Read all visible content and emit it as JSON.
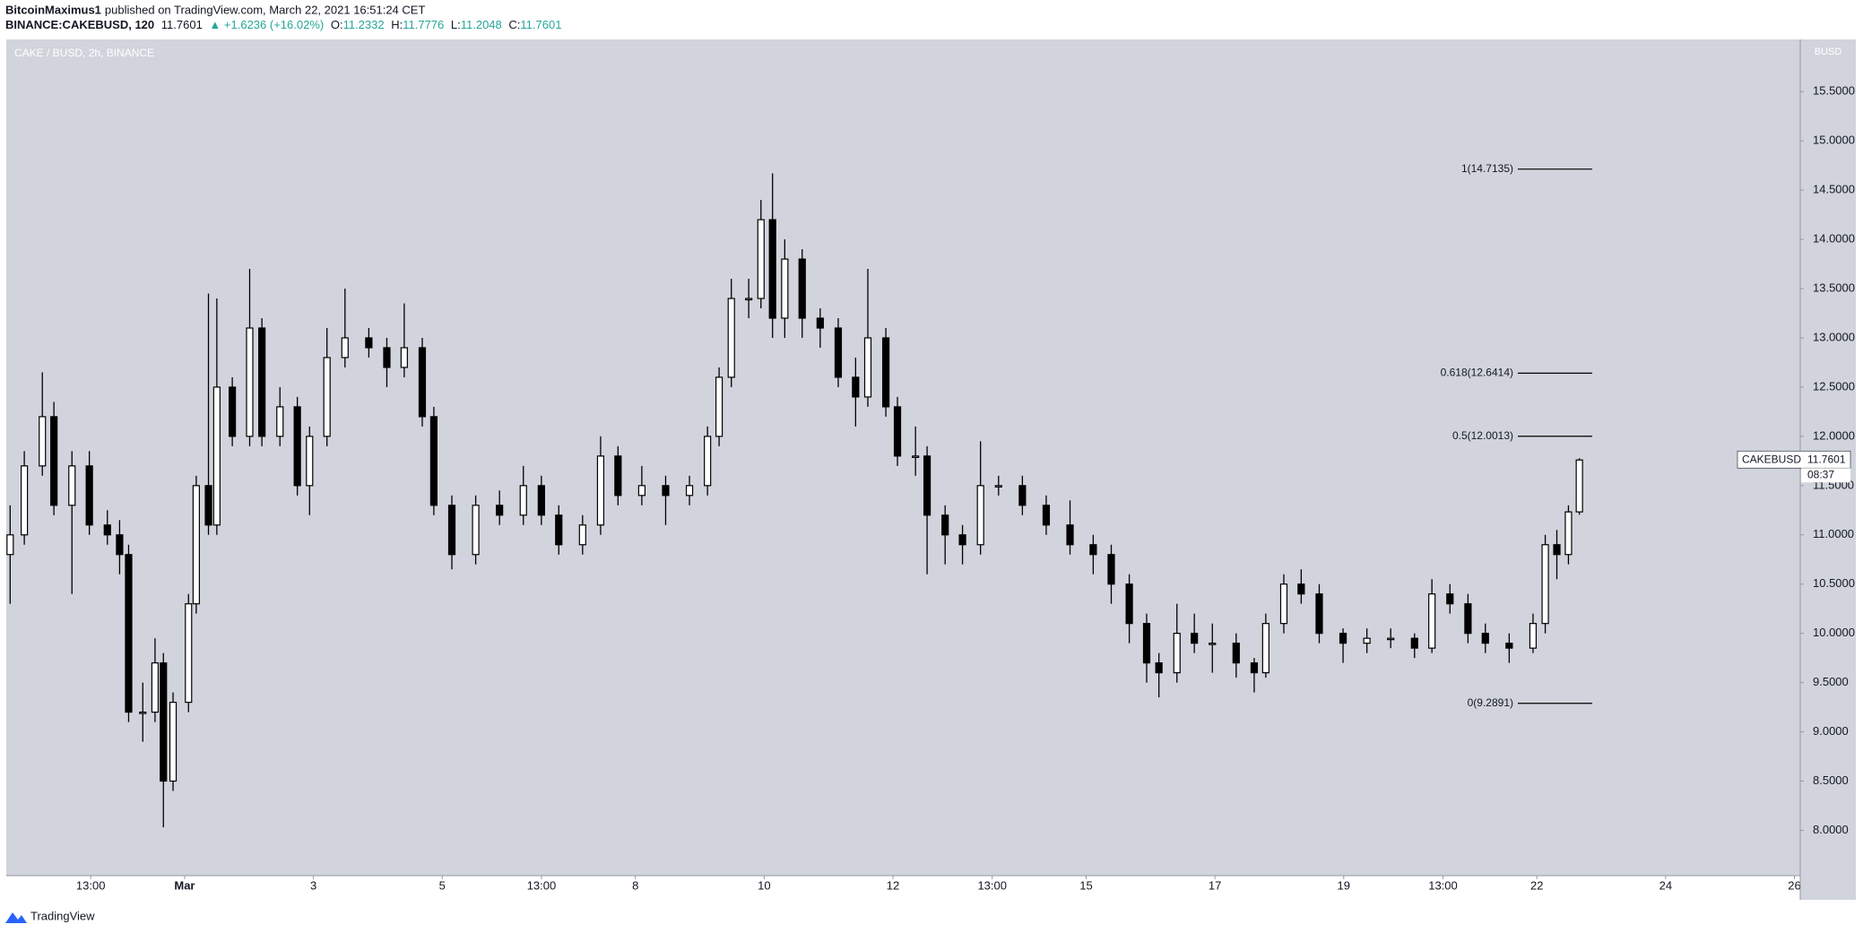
{
  "header": {
    "author": "BitcoinMaximus1",
    "published": "published on TradingView.com, March 22, 2021 16:51:24 CET",
    "symbol": "BINANCE:CAKEBUSD, 120",
    "change": "▲ +1.6236 (+16.02%)",
    "ohlc_labels": [
      "O:",
      "H:",
      "L:",
      "C:"
    ]
  },
  "footer": {
    "brand": "TradingView"
  },
  "chart_data": {
    "type": "candlestick",
    "title": "CAKE / BUSD, 2h, BINANCE",
    "y_unit": "BUSD",
    "price_tag": {
      "symbol": "CAKEBUSD",
      "countdown": "08:37"
    },
    "up_color": "#ffffff",
    "down_color": "#000000",
    "xlim": [
      -1.77,
      26.09
    ],
    "ylim": [
      7.54,
      16.03
    ],
    "xticks": [
      {
        "value": -0.4583,
        "label": "13:00"
      },
      {
        "value": 1,
        "label": "Mar"
      },
      3,
      5,
      {
        "value": 6.5417,
        "label": "13:00"
      },
      8,
      10,
      12,
      {
        "value": 13.5417,
        "label": "13:00"
      },
      15,
      17,
      19,
      {
        "value": 20.5417,
        "label": "13:00"
      },
      22,
      24,
      26
    ],
    "yticks": [
      {
        "value": 8,
        "label": "8.0000"
      },
      {
        "value": 8.5,
        "label": "8.5000"
      },
      {
        "value": 9,
        "label": "9.0000"
      },
      {
        "value": 9.5,
        "label": "9.5000"
      },
      {
        "value": 10,
        "label": "10.0000"
      },
      {
        "value": 10.5,
        "label": "10.5000"
      },
      {
        "value": 11,
        "label": "11.0000"
      },
      {
        "value": 11.5,
        "label": "11.5000"
      },
      {
        "value": 12,
        "label": "12.0000"
      },
      {
        "value": 12.5,
        "label": "12.5000"
      },
      {
        "value": 13,
        "label": "13.0000"
      },
      {
        "value": 13.5,
        "label": "13.5000"
      },
      {
        "value": 14,
        "label": "14.0000"
      },
      {
        "value": 14.5,
        "label": "14.5000"
      },
      {
        "value": 15,
        "label": "15.0000"
      },
      {
        "value": 15.5,
        "label": "15.5000"
      }
    ],
    "fib_levels": [
      {
        "label": "1(14.7135)",
        "value": 14.7135
      },
      {
        "label": "0.618(12.6414)",
        "value": 12.6414
      },
      {
        "label": "0.5(12.0013)",
        "value": 12.0013
      },
      {
        "label": "0(9.2891)",
        "value": 9.2891
      }
    ],
    "x": [
      -1.71,
      -1.49,
      -1.21,
      -1.03,
      -0.75,
      -0.48,
      -0.2,
      -0.01,
      0.13,
      0.35,
      0.54,
      0.67,
      0.82,
      1.06,
      1.18,
      1.37,
      1.5,
      1.74,
      2.01,
      2.2,
      2.48,
      2.75,
      2.94,
      3.21,
      3.49,
      3.86,
      4.14,
      4.41,
      4.69,
      4.87,
      5.15,
      5.52,
      5.89,
      6.26,
      6.54,
      6.81,
      7.18,
      7.46,
      7.73,
      8.1,
      8.47,
      8.84,
      9.12,
      9.3,
      9.49,
      9.76,
      9.95,
      10.13,
      10.32,
      10.59,
      10.87,
      11.15,
      11.42,
      11.61,
      11.89,
      12.07,
      12.35,
      12.53,
      12.81,
      13.08,
      13.36,
      13.64,
      14.01,
      14.38,
      14.75,
      15.11,
      15.39,
      15.67,
      15.94,
      16.13,
      16.41,
      16.68,
      16.96,
      17.33,
      17.61,
      17.79,
      18.07,
      18.34,
      18.62,
      18.99,
      19.36,
      19.73,
      20.1,
      20.37,
      20.65,
      20.93,
      21.2,
      21.57,
      21.94,
      22.13,
      22.31,
      22.49,
      22.66
    ],
    "open": [
      10.8,
      11.0,
      11.7,
      12.2,
      11.3,
      11.7,
      11.1,
      11.0,
      10.8,
      9.2,
      9.2,
      9.7,
      8.5,
      9.3,
      10.3,
      11.5,
      11.1,
      12.5,
      12.0,
      13.1,
      12.0,
      12.3,
      11.5,
      12.0,
      12.8,
      13.0,
      12.9,
      12.7,
      12.9,
      12.2,
      11.3,
      10.8,
      11.3,
      11.2,
      11.5,
      11.2,
      10.9,
      11.1,
      11.8,
      11.4,
      11.5,
      11.4,
      11.5,
      12.0,
      12.6,
      13.4,
      13.4,
      14.2,
      13.2,
      13.8,
      13.2,
      13.1,
      12.6,
      12.4,
      13.0,
      12.3,
      11.8,
      11.8,
      11.2,
      11.0,
      10.9,
      11.5,
      11.5,
      11.3,
      11.1,
      10.9,
      10.8,
      10.5,
      10.1,
      9.7,
      9.6,
      10.0,
      9.9,
      9.9,
      9.7,
      9.6,
      10.1,
      10.5,
      10.4,
      10.0,
      9.9,
      9.95,
      9.95,
      9.85,
      10.4,
      10.3,
      10.0,
      9.9,
      9.85,
      10.1,
      10.9,
      10.8,
      11.2332
    ],
    "high": [
      11.3,
      11.85,
      12.65,
      12.35,
      11.85,
      11.85,
      11.25,
      11.15,
      10.9,
      9.5,
      9.95,
      9.8,
      9.4,
      10.4,
      11.6,
      13.45,
      13.4,
      12.6,
      13.7,
      13.2,
      12.5,
      12.4,
      12.1,
      13.1,
      13.5,
      13.1,
      13.0,
      13.35,
      13.0,
      12.3,
      11.4,
      11.4,
      11.45,
      11.7,
      11.6,
      11.3,
      11.2,
      12.0,
      11.9,
      11.7,
      11.6,
      11.6,
      12.1,
      12.7,
      13.6,
      13.6,
      14.4,
      14.67,
      14.0,
      13.9,
      13.3,
      13.2,
      12.8,
      13.7,
      13.1,
      12.4,
      12.1,
      11.9,
      11.3,
      11.1,
      11.95,
      11.6,
      11.6,
      11.4,
      11.35,
      11.0,
      10.9,
      10.6,
      10.2,
      9.8,
      10.3,
      10.2,
      10.1,
      10.0,
      9.75,
      10.2,
      10.6,
      10.65,
      10.5,
      10.05,
      10.05,
      10.05,
      10.0,
      10.55,
      10.5,
      10.4,
      10.1,
      10.0,
      10.2,
      11.0,
      11.05,
      11.3,
      11.7776
    ],
    "low": [
      10.3,
      10.9,
      11.6,
      11.2,
      10.4,
      11.0,
      10.9,
      10.6,
      9.1,
      8.9,
      9.1,
      8.03,
      8.4,
      9.2,
      10.2,
      11.0,
      11.0,
      11.9,
      11.9,
      11.9,
      11.9,
      11.4,
      11.2,
      11.9,
      12.7,
      12.8,
      12.5,
      12.6,
      12.1,
      11.2,
      10.65,
      10.7,
      11.1,
      11.1,
      11.1,
      10.8,
      10.8,
      11.0,
      11.3,
      11.3,
      11.1,
      11.3,
      11.4,
      11.9,
      12.5,
      13.2,
      13.3,
      13.0,
      13.0,
      13.0,
      12.9,
      12.5,
      12.1,
      12.3,
      12.2,
      11.7,
      11.6,
      10.6,
      10.7,
      10.7,
      10.8,
      11.4,
      11.2,
      11.0,
      10.8,
      10.6,
      10.3,
      9.9,
      9.5,
      9.35,
      9.5,
      9.8,
      9.6,
      9.55,
      9.4,
      9.55,
      10.0,
      10.3,
      9.9,
      9.7,
      9.8,
      9.85,
      9.75,
      9.8,
      10.2,
      9.9,
      9.8,
      9.7,
      9.8,
      10.0,
      10.55,
      10.7,
      11.2048
    ],
    "close": [
      11.0,
      11.7,
      12.2,
      11.3,
      11.7,
      11.1,
      11.0,
      10.8,
      9.2,
      9.2,
      9.7,
      8.5,
      9.3,
      10.3,
      11.5,
      11.1,
      12.5,
      12.0,
      13.1,
      12.0,
      12.3,
      11.5,
      12.0,
      12.8,
      13.0,
      12.9,
      12.7,
      12.9,
      12.2,
      11.3,
      10.8,
      11.3,
      11.2,
      11.5,
      11.2,
      10.9,
      11.1,
      11.8,
      11.4,
      11.5,
      11.4,
      11.5,
      12.0,
      12.6,
      13.4,
      13.4,
      14.2,
      13.2,
      13.8,
      13.2,
      13.1,
      12.6,
      12.4,
      13.0,
      12.3,
      11.8,
      11.8,
      11.2,
      11.0,
      10.9,
      11.5,
      11.5,
      11.3,
      11.1,
      10.9,
      10.8,
      10.5,
      10.1,
      9.7,
      9.6,
      10.0,
      9.9,
      9.9,
      9.7,
      9.6,
      10.1,
      10.5,
      10.4,
      10.0,
      9.9,
      9.95,
      9.95,
      9.85,
      10.4,
      10.3,
      10.0,
      9.9,
      9.85,
      10.1,
      10.9,
      10.8,
      11.2332,
      11.7601
    ]
  }
}
